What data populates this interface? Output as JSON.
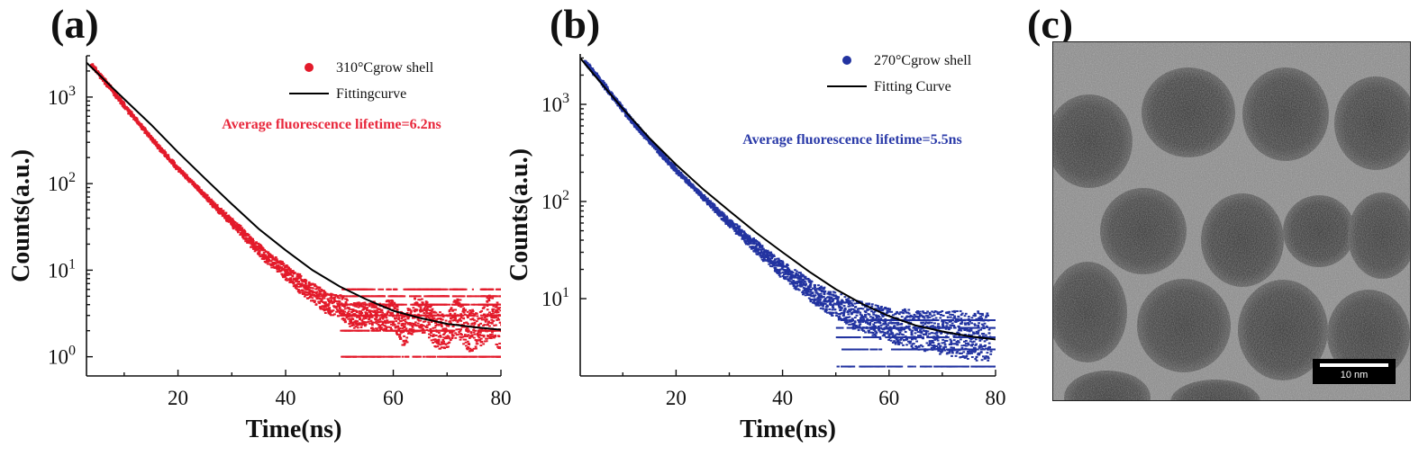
{
  "panels": {
    "a": {
      "letter": "(a)"
    },
    "b": {
      "letter": "(b)"
    },
    "c": {
      "letter": "(c)"
    }
  },
  "tem_image": {
    "scale_bar_label": "10 nm",
    "scale_bar_length_nm": 10
  },
  "chart_data": [
    {
      "type": "scatter",
      "panel": "a",
      "xlabel": "Time(ns)",
      "ylabel": "Counts(a.u.)",
      "y_scale": "log",
      "xlim": [
        3,
        80
      ],
      "ylim": [
        0.6,
        3000
      ],
      "xticks": [
        20,
        40,
        60,
        80
      ],
      "yticks": [
        1,
        10,
        100,
        1000
      ],
      "ytick_labels": [
        {
          "base": "10",
          "exp": "0"
        },
        {
          "base": "10",
          "exp": "1"
        },
        {
          "base": "10",
          "exp": "2"
        },
        {
          "base": "10",
          "exp": "3"
        }
      ],
      "legend_position": "top-right",
      "annotation": "Average fluorescence lifetime=6.2ns",
      "annotation_color": "#e8283c",
      "series": [
        {
          "name": "310°Cgrow shell",
          "kind": "scatter",
          "color": "#e31a2a",
          "x": [
            4,
            6,
            8,
            10,
            12,
            14,
            16,
            18,
            20,
            22,
            24,
            26,
            28,
            30,
            32,
            34,
            36,
            38,
            40,
            42,
            44,
            46,
            48,
            50,
            52,
            54,
            56,
            58,
            60,
            62,
            64,
            66,
            68,
            70,
            72,
            74,
            76,
            78,
            80
          ],
          "y": [
            2350,
            1650,
            1150,
            800,
            560,
            400,
            285,
            205,
            150,
            112,
            85,
            62,
            47,
            36,
            27,
            20,
            15,
            12,
            9.5,
            7.5,
            6,
            5,
            4,
            4,
            3,
            3,
            3,
            3,
            3,
            2,
            3,
            3,
            2,
            2,
            3,
            2,
            2,
            3,
            2
          ]
        },
        {
          "name": "Fittingcurve",
          "kind": "line",
          "color": "#000000",
          "x": [
            3,
            5,
            10,
            15,
            20,
            25,
            30,
            35,
            40,
            45,
            50,
            55,
            60,
            65,
            70,
            75,
            80
          ],
          "y": [
            2500,
            1900,
            950,
            480,
            230,
            115,
            58,
            30,
            17,
            10,
            6.5,
            4.6,
            3.4,
            2.8,
            2.4,
            2.2,
            2.05
          ]
        }
      ]
    },
    {
      "type": "scatter",
      "panel": "b",
      "xlabel": "Time(ns)",
      "ylabel": "Counts(a.u.)",
      "y_scale": "log",
      "xlim": [
        2,
        80
      ],
      "ylim": [
        1.6,
        3300
      ],
      "xticks": [
        20,
        40,
        60,
        80
      ],
      "yticks": [
        10,
        100,
        1000
      ],
      "ytick_labels": [
        {
          "base": "10",
          "exp": "1"
        },
        {
          "base": "10",
          "exp": "2"
        },
        {
          "base": "10",
          "exp": "3"
        }
      ],
      "legend_position": "top-right",
      "annotation": "Average fluorescence lifetime=5.5ns",
      "annotation_color": "#2a3aa8",
      "series": [
        {
          "name": "270°Cgrow shell",
          "kind": "scatter",
          "color": "#2233a0",
          "x": [
            3,
            5,
            7,
            9,
            11,
            13,
            15,
            17,
            19,
            21,
            23,
            25,
            27,
            29,
            31,
            33,
            35,
            37,
            39,
            41,
            43,
            45,
            47,
            49,
            51,
            53,
            55,
            57,
            59,
            61,
            63,
            65,
            67,
            69,
            71,
            73,
            75,
            77,
            79
          ],
          "y": [
            2700,
            2000,
            1450,
            1050,
            760,
            560,
            420,
            320,
            240,
            185,
            145,
            112,
            88,
            68,
            54,
            43,
            34,
            27,
            22,
            18,
            15,
            12.5,
            10.5,
            9,
            8,
            7,
            6.5,
            6,
            5.5,
            5.2,
            5,
            4.8,
            4.6,
            4.5,
            4.4,
            4.3,
            4.2,
            4.1,
            4
          ]
        },
        {
          "name": "Fitting Curve",
          "kind": "line",
          "color": "#000000",
          "x": [
            2,
            5,
            10,
            15,
            20,
            25,
            30,
            35,
            40,
            45,
            50,
            55,
            60,
            65,
            70,
            75,
            80
          ],
          "y": [
            3000,
            1900,
            900,
            450,
            240,
            135,
            80,
            48,
            30,
            19,
            12.5,
            8.8,
            6.6,
            5.3,
            4.6,
            4.1,
            3.8
          ]
        }
      ]
    }
  ]
}
